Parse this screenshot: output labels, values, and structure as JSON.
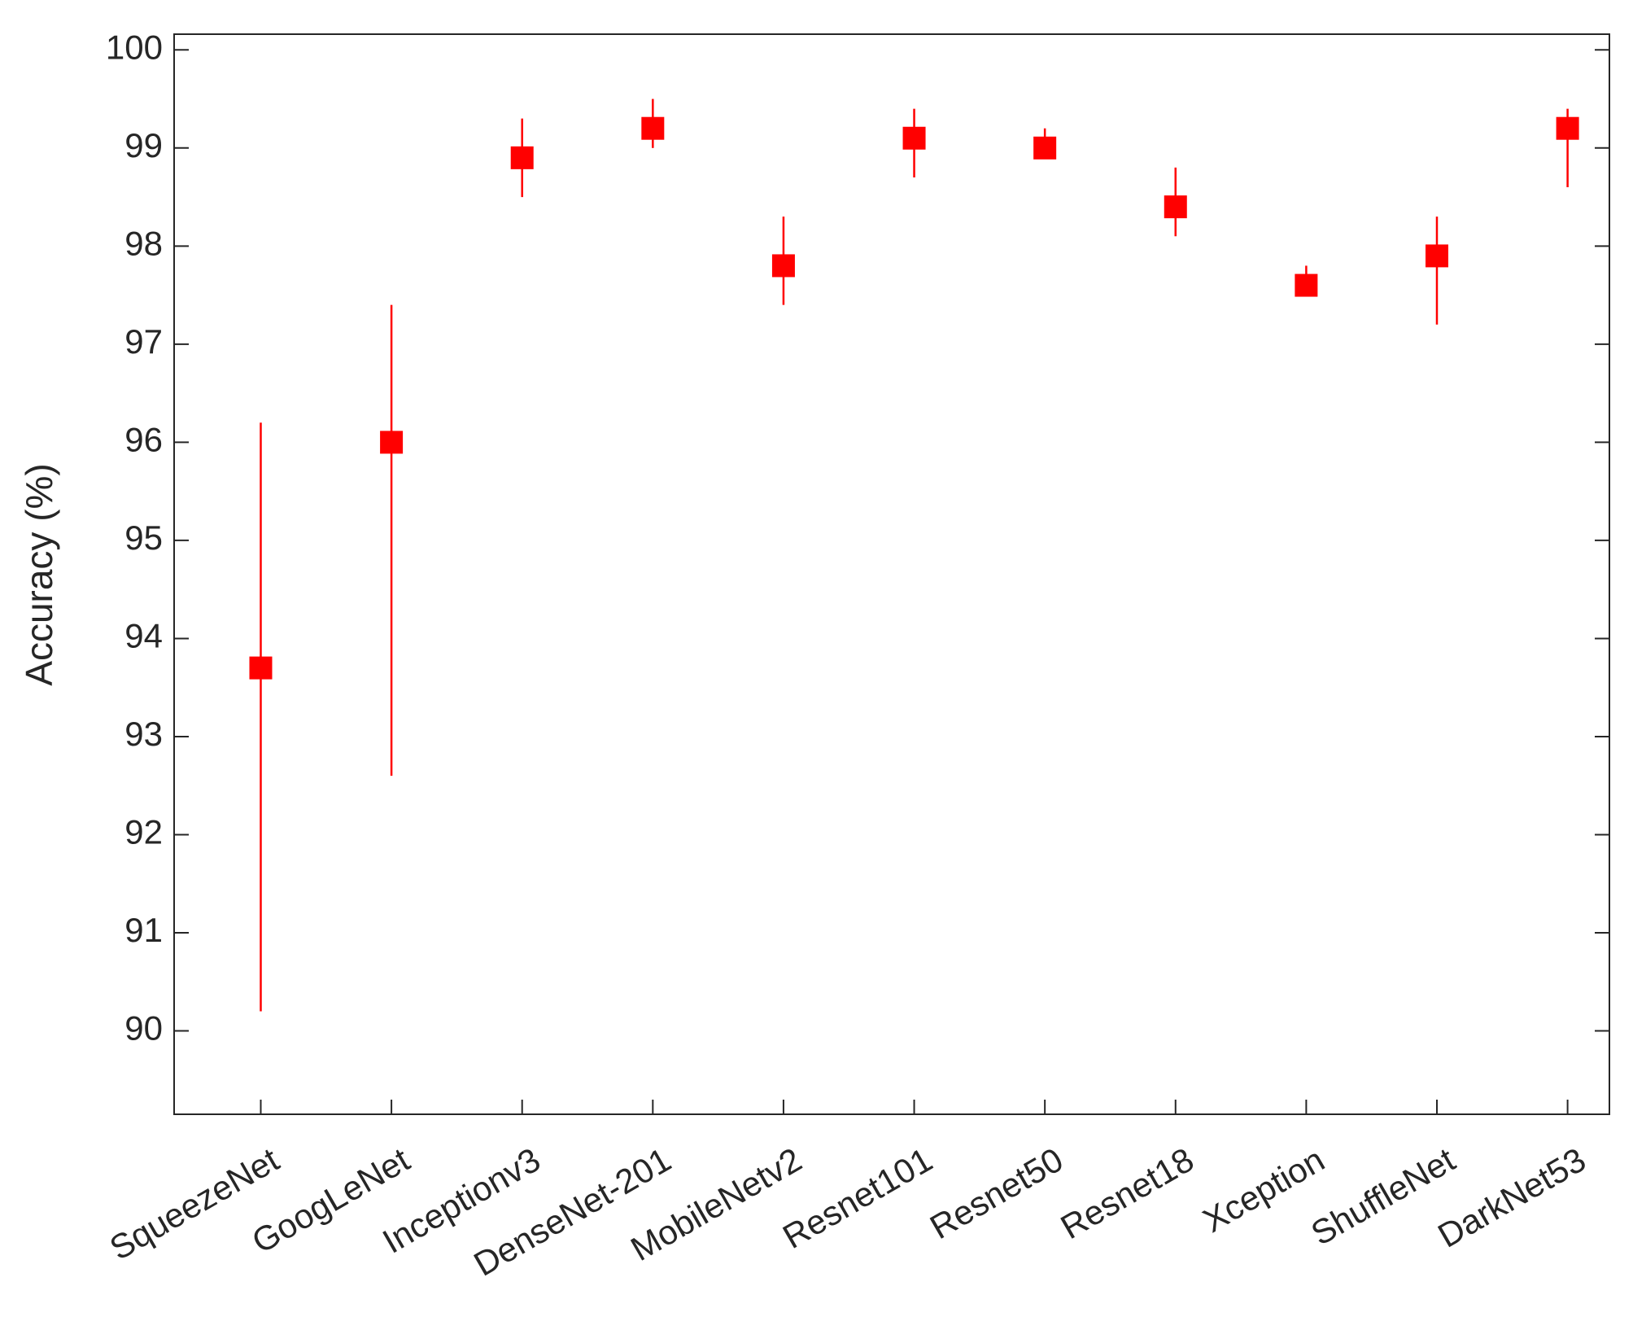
{
  "chart_data": {
    "type": "errorbar",
    "ylabel": "Accuracy (%)",
    "categories": [
      "SqueezeNet",
      "GoogLeNet",
      "Inceptionv3",
      "DenseNet-201",
      "MobileNetv2",
      "Resnet101",
      "Resnet50",
      "Resnet18",
      "Xception",
      "ShuffleNet",
      "DarkNet53"
    ],
    "values": [
      93.7,
      96.0,
      98.9,
      99.2,
      97.8,
      99.1,
      99.0,
      98.4,
      97.6,
      97.9,
      99.2
    ],
    "lower": [
      90.2,
      92.6,
      98.5,
      99.0,
      97.4,
      98.7,
      98.9,
      98.1,
      97.5,
      97.2,
      98.6
    ],
    "upper": [
      96.2,
      97.4,
      99.3,
      99.5,
      98.3,
      99.4,
      99.2,
      98.8,
      97.8,
      98.3,
      99.4
    ],
    "color": "#ff0000",
    "ylim": [
      89.15,
      100.16
    ],
    "yticks": [
      90,
      91,
      92,
      93,
      94,
      95,
      96,
      97,
      98,
      99,
      100
    ],
    "grid": false
  }
}
